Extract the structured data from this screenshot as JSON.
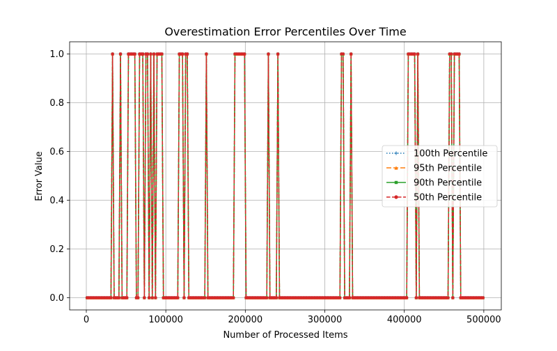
{
  "chart_data": {
    "type": "line",
    "title": "Overestimation Error Percentiles Over Time",
    "xlabel": "Number of Processed Items",
    "ylabel": "Error Value",
    "xlim": [
      -21000,
      522000
    ],
    "ylim": [
      -0.05,
      1.05
    ],
    "xticks": [
      0,
      100000,
      200000,
      300000,
      400000,
      500000
    ],
    "xtick_labels": [
      "0",
      "100000",
      "200000",
      "300000",
      "400000",
      "500000"
    ],
    "yticks": [
      0.0,
      0.2,
      0.4,
      0.6,
      0.8,
      1.0
    ],
    "ytick_labels": [
      "0.0",
      "0.2",
      "0.4",
      "0.6",
      "0.8",
      "1.0"
    ],
    "grid": true,
    "legend_position": "center-right",
    "x_range": [
      1000,
      500000
    ],
    "x_step": 2000,
    "error_intervals": [
      [
        33000,
        34000
      ],
      [
        43000,
        44000
      ],
      [
        53000,
        62000
      ],
      [
        67000,
        71000
      ],
      [
        75000,
        77000
      ],
      [
        80000,
        81000
      ],
      [
        84000,
        85000
      ],
      [
        89000,
        95000
      ],
      [
        117000,
        122000
      ],
      [
        125000,
        127000
      ],
      [
        150000,
        151000
      ],
      [
        187000,
        200000
      ],
      [
        229000,
        230000
      ],
      [
        240000,
        242000
      ],
      [
        320000,
        323000
      ],
      [
        333000,
        334000
      ],
      [
        404000,
        413000
      ],
      [
        416000,
        418000
      ],
      [
        457000,
        459000
      ],
      [
        462000,
        469000
      ]
    ],
    "series": [
      {
        "name": "100th Percentile",
        "color": "#1f77b4",
        "dash": "1.5,2.5",
        "marker": "plus"
      },
      {
        "name": "95th Percentile",
        "color": "#ff7f0e",
        "dash": "7,3",
        "marker": "triangle"
      },
      {
        "name": "90th Percentile",
        "color": "#2ca02c",
        "dash": "",
        "marker": "square"
      },
      {
        "name": "50th Percentile",
        "color": "#d62728",
        "dash": "5.5,2.5",
        "marker": "circle"
      }
    ]
  }
}
